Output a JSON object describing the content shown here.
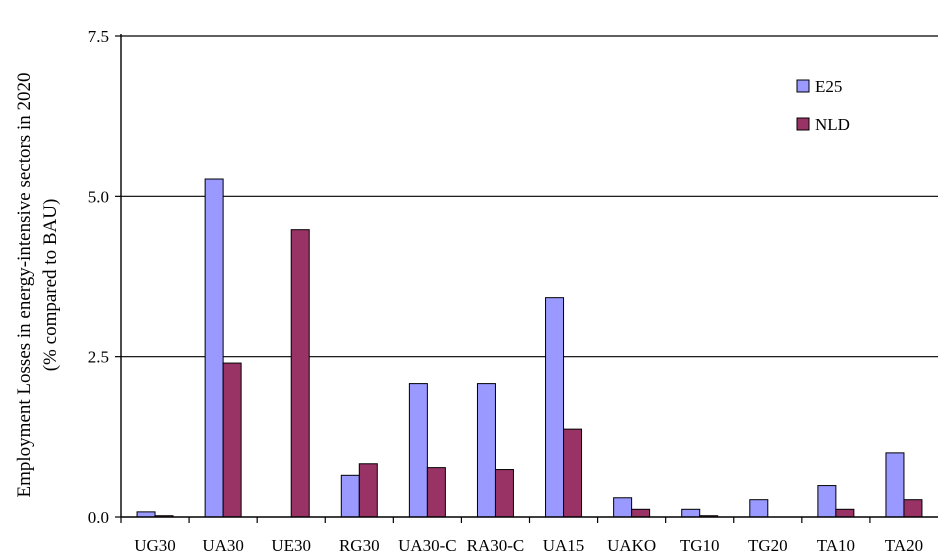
{
  "chart_data": {
    "type": "bar",
    "title": "",
    "xlabel": "",
    "ylabel_line1": "Employment Losses in energy-intensive sectors in 2020",
    "ylabel_line2": "(% compared to BAU)",
    "ylim": [
      0,
      7.5
    ],
    "yticks": [
      "0.0",
      "2.5",
      "5.0",
      "7.5"
    ],
    "ytick_values": [
      0,
      2.5,
      5.0,
      7.5
    ],
    "grid": true,
    "legend_position": "top-right",
    "categories": [
      "UG30",
      "UA30",
      "UE30",
      "RG30",
      "UA30-C",
      "RA30-C",
      "UA15",
      "UAKO",
      "TG10",
      "TG20",
      "TA10",
      "TA20"
    ],
    "series": [
      {
        "name": "E25",
        "color": "#9999ff",
        "values": [
          0.08,
          5.27,
          0.0,
          0.65,
          2.08,
          2.08,
          3.42,
          0.3,
          0.12,
          0.27,
          0.49,
          1.0
        ]
      },
      {
        "name": "NLD",
        "color": "#993366",
        "values": [
          0.02,
          2.4,
          4.48,
          0.83,
          0.77,
          0.74,
          1.37,
          0.12,
          0.02,
          0.0,
          0.12,
          0.27
        ]
      }
    ]
  }
}
